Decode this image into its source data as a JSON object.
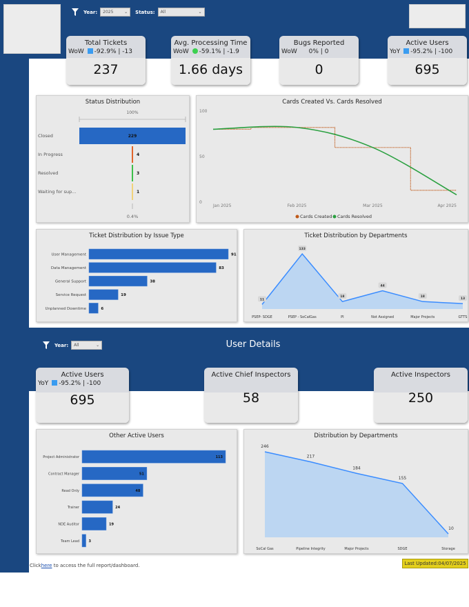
{
  "filters": {
    "year_label": "Year:",
    "year_value": "2025",
    "status_label": "Status:",
    "status_value": "All"
  },
  "kpis": [
    {
      "title": "Total Tickets",
      "period": "WoW",
      "indicator": "down",
      "change": "-92.9%",
      "delta": "-13",
      "value": "237"
    },
    {
      "title": "Avg. Processing Time",
      "period": "WoW",
      "indicator": "green-dot",
      "change": "-59.1%",
      "delta": "-1.9",
      "value": "1.66 days"
    },
    {
      "title": "Bugs Reported",
      "period": "WoW",
      "indicator": "none",
      "change": "0%",
      "delta": "0",
      "value": "0"
    },
    {
      "title": "Active Users",
      "period": "YoY",
      "indicator": "down",
      "change": "-95.2%",
      "delta": "-100",
      "value": "695"
    }
  ],
  "colors": {
    "header": "#1a4780",
    "bar": "#2668c4",
    "area_fill": "#bcd6f2",
    "area_line": "#3a8cff",
    "created": "#c05a1a",
    "resolved": "#2aa040",
    "last_updated_bg": "#e3cf1c"
  },
  "chart_data": [
    {
      "type": "bar",
      "title": "Status Distribution",
      "orientation": "horizontal",
      "categories": [
        "Closed",
        "In Progress",
        "Resolved",
        "Waiting for sup..."
      ],
      "values": [
        229,
        4,
        3,
        1
      ],
      "bar_colors": [
        "#2668c4",
        "#e0642a",
        "#3cbf4a",
        "#f2d27a"
      ],
      "top_label": "100%",
      "bottom_label": "0.4%"
    },
    {
      "type": "line",
      "title": "Cards Created Vs. Cards Resolved",
      "x_ticks": [
        "Jan 2025",
        "Feb 2025",
        "Mar 2025",
        "Apr 2025"
      ],
      "y_ticks": [
        0,
        50,
        100
      ],
      "ylim": [
        0,
        100
      ],
      "series": [
        {
          "name": "Cards Created",
          "style": "step-dotted",
          "x": [
            "2025-01-01",
            "2025-01-15",
            "2025-02-15",
            "2025-03-15",
            "2025-04-01"
          ],
          "y": [
            80,
            82,
            60,
            13,
            13
          ]
        },
        {
          "name": "Cards Resolved",
          "style": "smooth",
          "x": [
            "2025-01-01",
            "2025-02-01",
            "2025-03-01",
            "2025-04-01"
          ],
          "y": [
            80,
            82,
            60,
            8
          ]
        }
      ],
      "legend": "bottom"
    },
    {
      "type": "bar",
      "title": "Ticket Distribution by Issue Type",
      "orientation": "horizontal",
      "categories": [
        "User Management",
        "Data Management",
        "General Support",
        "Service Request",
        "Unplanned Downtime"
      ],
      "values": [
        91,
        83,
        38,
        19,
        6
      ]
    },
    {
      "type": "area",
      "title": "Ticket Distribution by Departments",
      "categories": [
        "PSEP- SDGE",
        "PSEP - SoCalGas",
        "PI",
        "Not Assigned",
        "Major Projects",
        "GTTS"
      ],
      "values": [
        11,
        133,
        18,
        44,
        18,
        13
      ]
    },
    {
      "type": "bar",
      "title": "Other Active Users",
      "orientation": "horizontal",
      "categories": [
        "Project Administrator",
        "Contract Manager",
        "Read Only",
        "Trainer",
        "NDE Auditor",
        "Team Lead"
      ],
      "values": [
        113,
        51,
        48,
        24,
        19,
        3
      ]
    },
    {
      "type": "area",
      "title": "Distribution by Departments",
      "categories": [
        "SoCal Gas",
        "Pipeline Integrity",
        "Major Projects",
        "SDGE",
        "Storage"
      ],
      "values": [
        246,
        217,
        184,
        155,
        10
      ]
    }
  ],
  "user_details": {
    "title": "User Details",
    "year_label": "Year:",
    "year_value": "All",
    "cards": [
      {
        "title": "Active Users",
        "period": "YoY",
        "change": "-95.2%",
        "delta": "-100",
        "value": "695"
      },
      {
        "title": "Active Chief Inspectors",
        "value": "58"
      },
      {
        "title": "Active Inspectors",
        "value": "250"
      }
    ]
  },
  "footer": {
    "prefix": "Click",
    "link": "here",
    "suffix": "to access the full report/dashboard.",
    "last_updated": "Last Updated:04/07/2025"
  }
}
